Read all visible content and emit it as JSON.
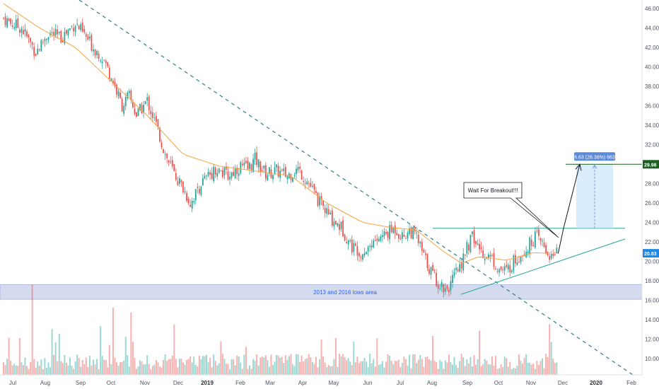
{
  "colors": {
    "up": "#26a69a",
    "down": "#ef5350",
    "ma": "#f7a440",
    "trendline": "#2e7d8a",
    "support": "#26a69a",
    "resistance": "#26a69a",
    "zone_fill": "#c7cfea",
    "price_tag": "#1e88e5",
    "target_tag": "#1b5e20",
    "measure_fill": "#bbdefb",
    "measure_tag": "#5c8ad8"
  },
  "chart_data": {
    "type": "candlestick",
    "x_ticks": [
      "Jul",
      "Aug",
      "Sep",
      "Oct",
      "Nov",
      "Dec",
      "2019",
      "Feb",
      "Mar",
      "Apr",
      "May",
      "Jun",
      "Jul",
      "Aug",
      "Sep",
      "Oct",
      "Nov",
      "Dec",
      "2020",
      "Feb"
    ],
    "bold_x_ticks": [
      "2019",
      "2020"
    ],
    "y_ticks": [
      "46.00",
      "44.00",
      "42.00",
      "40.00",
      "38.00",
      "36.00",
      "34.00",
      "32.00",
      "30.00",
      "28.00",
      "26.00",
      "24.00",
      "22.00",
      "20.00",
      "18.00",
      "16.00",
      "14.00",
      "12.00",
      "10.00"
    ],
    "ylim": [
      9,
      46.5
    ],
    "close_path": [
      [
        0,
        45.0
      ],
      [
        4,
        44.5
      ],
      [
        10,
        44.0
      ],
      [
        18,
        41.5
      ],
      [
        25,
        43.5
      ],
      [
        32,
        43.0
      ],
      [
        40,
        44.5
      ],
      [
        44,
        43.5
      ],
      [
        50,
        42.0
      ],
      [
        55,
        41.0
      ],
      [
        60,
        39.0
      ],
      [
        66,
        36.0
      ],
      [
        70,
        37.0
      ],
      [
        74,
        35.0
      ],
      [
        80,
        36.5
      ],
      [
        85,
        34.0
      ],
      [
        90,
        31.0
      ],
      [
        95,
        29.0
      ],
      [
        100,
        27.5
      ],
      [
        104,
        26.0
      ],
      [
        110,
        28.0
      ],
      [
        118,
        29.5
      ],
      [
        125,
        28.8
      ],
      [
        132,
        29.8
      ],
      [
        136,
        29.5
      ],
      [
        140,
        30.5
      ],
      [
        146,
        29.0
      ],
      [
        152,
        29.3
      ],
      [
        158,
        28.8
      ],
      [
        164,
        29.5
      ],
      [
        170,
        28.0
      ],
      [
        176,
        26.0
      ],
      [
        182,
        24.5
      ],
      [
        188,
        23.5
      ],
      [
        194,
        21.5
      ],
      [
        200,
        21.0
      ],
      [
        206,
        22.0
      ],
      [
        212,
        22.7
      ],
      [
        218,
        23.4
      ],
      [
        222,
        22.5
      ],
      [
        226,
        23.2
      ],
      [
        230,
        22.5
      ],
      [
        234,
        20.5
      ],
      [
        238,
        19.0
      ],
      [
        242,
        17.8
      ],
      [
        246,
        17.2
      ],
      [
        249,
        17.6
      ],
      [
        254,
        19.5
      ],
      [
        258,
        21.3
      ],
      [
        261,
        22.5
      ],
      [
        264,
        21.5
      ],
      [
        268,
        20.8
      ],
      [
        272,
        20.3
      ],
      [
        276,
        19.2
      ],
      [
        280,
        19.0
      ],
      [
        284,
        20.0
      ],
      [
        288,
        20.8
      ],
      [
        292,
        21.5
      ],
      [
        296,
        22.6
      ],
      [
        300,
        21.8
      ],
      [
        303,
        20.8
      ],
      [
        306,
        20.4
      ],
      [
        308,
        20.8
      ]
    ],
    "moving_average": [
      [
        0,
        46.5
      ],
      [
        20,
        44.0
      ],
      [
        40,
        42.0
      ],
      [
        60,
        38.5
      ],
      [
        80,
        35.0
      ],
      [
        100,
        31.0
      ],
      [
        120,
        29.8
      ],
      [
        140,
        29.3
      ],
      [
        160,
        28.8
      ],
      [
        180,
        26.0
      ],
      [
        200,
        24.0
      ],
      [
        215,
        23.5
      ],
      [
        230,
        23.2
      ],
      [
        245,
        21.0
      ],
      [
        255,
        19.8
      ],
      [
        265,
        20.5
      ],
      [
        280,
        20.1
      ],
      [
        295,
        20.9
      ],
      [
        305,
        20.8
      ]
    ],
    "annotations": {
      "current_price": "20.83",
      "target_price": "29.98",
      "callout": "Wait For Breakout!!!",
      "support_zone_label": "2013 and 2016 lows area",
      "measure_label": "6.63 (28.38%) 663",
      "support_zone": [
        16.1,
        17.6
      ],
      "resistance_level": 23.4,
      "target_level": 29.98,
      "projection": [
        [
          308,
          20.8
        ],
        [
          314,
          23.4
        ],
        [
          320,
          29.98
        ]
      ]
    }
  }
}
